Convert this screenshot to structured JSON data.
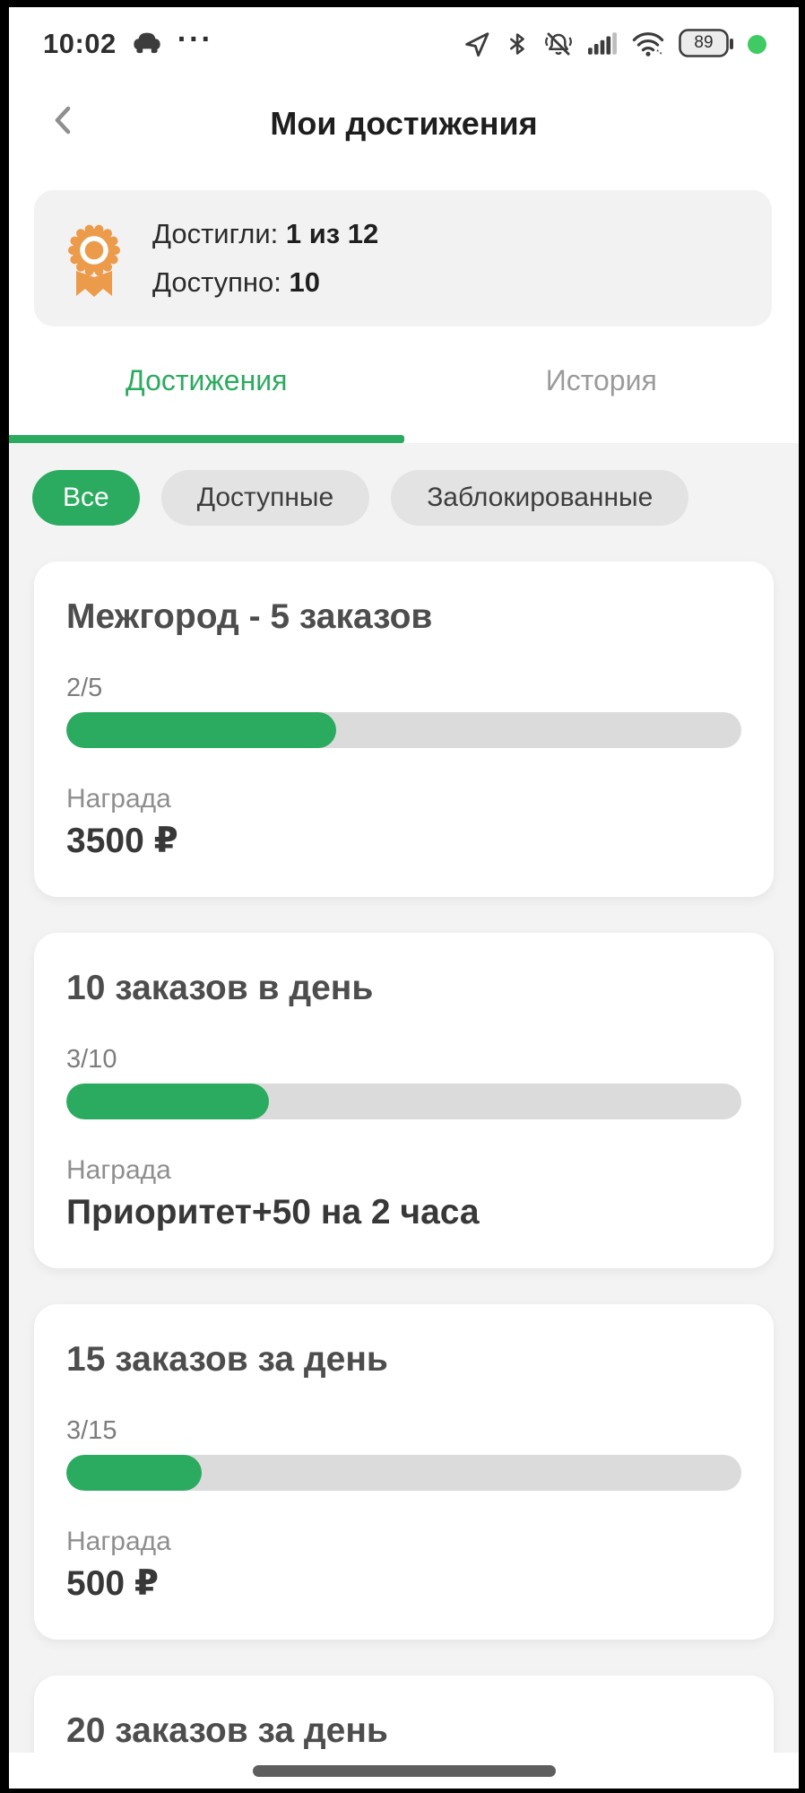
{
  "colors": {
    "green": "#2bab5f",
    "orange": "#ec9b4b",
    "online_dot": "#3fca63"
  },
  "status_bar": {
    "time": "10:02",
    "more": "···",
    "battery_percent": "89"
  },
  "header": {
    "title": "Мои достижения"
  },
  "summary": {
    "achieved_label": "Достигли:",
    "achieved_value": "1 из 12",
    "available_label": "Доступно:",
    "available_value": "10"
  },
  "tabs": [
    {
      "label": "Достижения",
      "active": true
    },
    {
      "label": "История",
      "active": false
    }
  ],
  "filters": [
    {
      "label": "Все",
      "active": true
    },
    {
      "label": "Доступные",
      "active": false
    },
    {
      "label": "Заблокированные",
      "active": false
    }
  ],
  "achievements": [
    {
      "title": "Межгород - 5 заказов",
      "progress_label": "2/5",
      "progress_percent": 40,
      "reward_label": "Награда",
      "reward_value": "3500 ₽"
    },
    {
      "title": "10 заказов в день",
      "progress_label": "3/10",
      "progress_percent": 30,
      "reward_label": "Награда",
      "reward_value": "Приоритет+50 на 2 часа"
    },
    {
      "title": "15 заказов за день",
      "progress_label": "3/15",
      "progress_percent": 20,
      "reward_label": "Награда",
      "reward_value": "500 ₽"
    },
    {
      "title": "20 заказов за день",
      "progress_label": "",
      "progress_percent": 0,
      "reward_label": "",
      "reward_value": "",
      "partial": true
    }
  ]
}
